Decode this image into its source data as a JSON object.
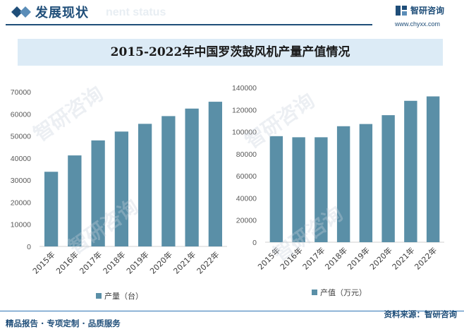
{
  "header": {
    "title": "发展现状",
    "subtitle_watermark": "nent status",
    "brand_name": "智研咨询",
    "brand_url": "www.chyxx.com"
  },
  "chart_title": "2015-2022年中国罗茨鼓风机产量产值情况",
  "footer": {
    "left": "精品报告 · 专项定制 · 品质服务",
    "right": "资料来源：智研咨询",
    "watermark": "智研咨询"
  },
  "watermark_text": "智研咨询",
  "colors": {
    "bar": "#5a8fa7",
    "accent": "#1f4e79",
    "title_band": "#dcebf6"
  },
  "chart_data": [
    {
      "type": "bar",
      "categories": [
        "2015年",
        "2016年",
        "2017年",
        "2018年",
        "2019年",
        "2020年",
        "2021年",
        "2022年"
      ],
      "series": [
        {
          "name": "产量（台）",
          "values": [
            33800,
            41200,
            48000,
            52000,
            55500,
            59000,
            62400,
            65500
          ]
        }
      ],
      "ylim": [
        0,
        70000
      ],
      "yticks": [
        0,
        10000,
        20000,
        30000,
        40000,
        50000,
        60000,
        70000
      ],
      "legend": "bottom"
    },
    {
      "type": "bar",
      "categories": [
        "2015年",
        "2016年",
        "2017年",
        "2018年",
        "2019年",
        "2020年",
        "2021年",
        "2022年"
      ],
      "series": [
        {
          "name": "产值（万元）",
          "values": [
            96000,
            95000,
            95000,
            105000,
            107000,
            115000,
            128000,
            132000
          ]
        }
      ],
      "ylim": [
        0,
        140000
      ],
      "yticks": [
        0,
        20000,
        40000,
        60000,
        80000,
        100000,
        120000,
        140000
      ],
      "legend": "bottom"
    }
  ]
}
